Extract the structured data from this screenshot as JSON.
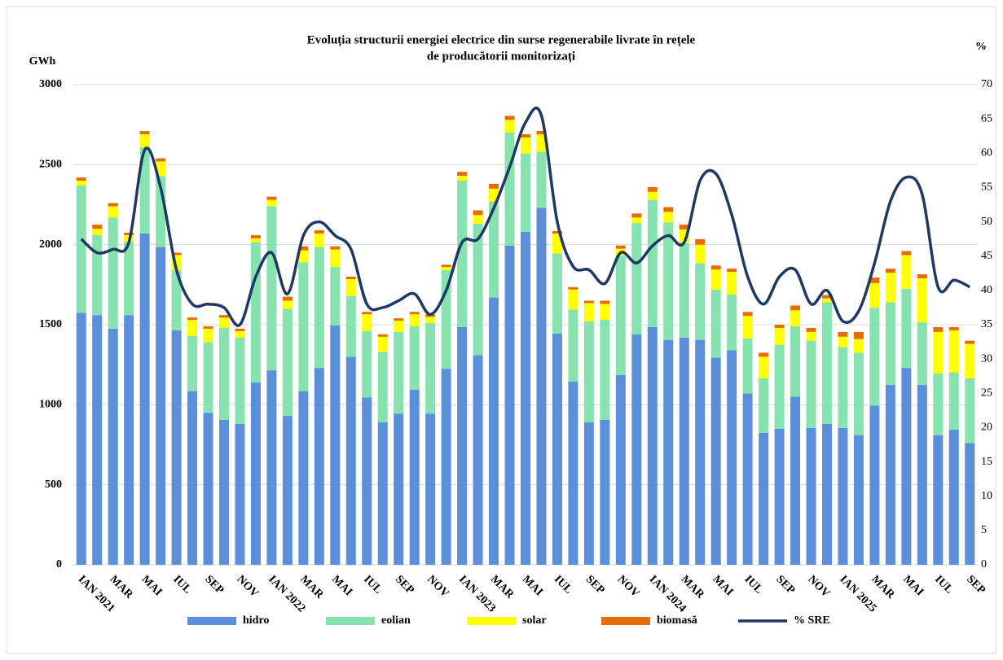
{
  "chart_data": {
    "type": "bar",
    "stacked": true,
    "title": [
      "Evoluția structurii energiei electrice din surse regenerabile livrate în rețele",
      "de producătorii monitorizați"
    ],
    "y_label": "GWh",
    "y2_label": "%",
    "categories": [
      "IAN 2021",
      null,
      "MAR",
      null,
      "MAI",
      null,
      "IUL",
      null,
      "SEP",
      null,
      "NOV",
      null,
      "IAN 2022",
      null,
      "MAR",
      null,
      "MAI",
      null,
      "IUL",
      null,
      "SEP",
      null,
      "NOV",
      null,
      "IAN 2023",
      null,
      "MAR",
      null,
      "MAI",
      null,
      "IUL",
      null,
      "SEP",
      null,
      "NOV",
      null,
      "IAN 2024",
      null,
      "MAR",
      null,
      "MAI",
      null,
      "IUL",
      null,
      "SEP",
      null,
      "NOV",
      null,
      "IAN 2025",
      null,
      "MAR",
      null,
      "MAI",
      null,
      "IUL",
      null,
      "SEP"
    ],
    "series": [
      {
        "name": "hidro",
        "type": "bar",
        "color": "#5b8fd9",
        "values": [
          1575,
          1560,
          1475,
          1560,
          2070,
          1985,
          1465,
          1085,
          950,
          905,
          880,
          1140,
          1215,
          930,
          1085,
          1230,
          1495,
          1300,
          1045,
          890,
          945,
          1095,
          945,
          1225,
          1485,
          1310,
          1670,
          1995,
          2080,
          2230,
          1445,
          1145,
          890,
          905,
          1185,
          1440,
          1485,
          1405,
          1420,
          1405,
          1295,
          1340,
          1070,
          825,
          850,
          1050,
          855,
          880,
          855,
          810,
          995,
          1125,
          1230,
          1125,
          810,
          845,
          760
        ]
      },
      {
        "name": "eolian",
        "type": "bar",
        "color": "#86e3b0",
        "values": [
          795,
          500,
          695,
          460,
          540,
          445,
          375,
          345,
          440,
          575,
          540,
          875,
          1025,
          670,
          805,
          755,
          365,
          380,
          415,
          440,
          510,
          395,
          565,
          615,
          915,
          820,
          600,
          705,
          490,
          350,
          500,
          450,
          630,
          625,
          745,
          695,
          795,
          735,
          590,
          480,
          425,
          350,
          345,
          340,
          525,
          440,
          545,
          760,
          505,
          515,
          610,
          515,
          495,
          390,
          385,
          355,
          405
        ]
      },
      {
        "name": "solar",
        "type": "bar",
        "color": "#ffff00",
        "values": [
          30,
          40,
          70,
          40,
          80,
          90,
          95,
          100,
          85,
          65,
          40,
          25,
          40,
          50,
          75,
          85,
          110,
          105,
          105,
          95,
          70,
          75,
          40,
          20,
          30,
          55,
          80,
          80,
          100,
          110,
          125,
          125,
          115,
          100,
          45,
          35,
          50,
          65,
          85,
          115,
          125,
          140,
          140,
          135,
          105,
          100,
          55,
          25,
          65,
          85,
          155,
          185,
          210,
          275,
          260,
          265,
          215
        ]
      },
      {
        "name": "biomasă",
        "type": "bar",
        "color": "#e46c0a",
        "values": [
          20,
          25,
          20,
          15,
          20,
          20,
          15,
          15,
          15,
          15,
          15,
          20,
          20,
          25,
          25,
          20,
          20,
          15,
          15,
          15,
          15,
          15,
          15,
          15,
          25,
          30,
          30,
          25,
          20,
          20,
          15,
          15,
          15,
          20,
          20,
          25,
          30,
          30,
          30,
          35,
          25,
          20,
          25,
          25,
          20,
          30,
          25,
          20,
          30,
          45,
          35,
          25,
          25,
          25,
          30,
          20,
          20
        ]
      },
      {
        "name": "% SRE",
        "type": "line",
        "axis": "y2",
        "color": "#1f3864",
        "values": [
          47.5,
          45.5,
          46,
          47,
          60.5,
          55,
          43,
          38,
          38,
          37.5,
          35,
          42,
          45.5,
          39.5,
          48,
          50,
          48,
          46,
          38,
          37.5,
          38.5,
          39.5,
          36.5,
          40,
          47,
          47.5,
          52,
          58,
          64.5,
          65.5,
          50,
          43.5,
          43,
          41,
          45.5,
          44,
          46.5,
          48,
          47,
          56,
          57,
          51,
          42,
          38,
          42,
          43,
          38,
          40,
          35.5,
          37,
          44,
          53,
          56.5,
          54,
          40.5,
          41.5,
          40.5
        ]
      }
    ],
    "ylim": [
      0,
      3000
    ],
    "yticks": [
      0,
      500,
      1000,
      1500,
      2000,
      2500,
      3000
    ],
    "y2lim": [
      0,
      70
    ],
    "y2ticks": [
      0,
      5,
      10,
      15,
      20,
      25,
      30,
      35,
      40,
      45,
      50,
      55,
      60,
      65,
      70
    ],
    "grid": true,
    "legend": "bottom"
  }
}
